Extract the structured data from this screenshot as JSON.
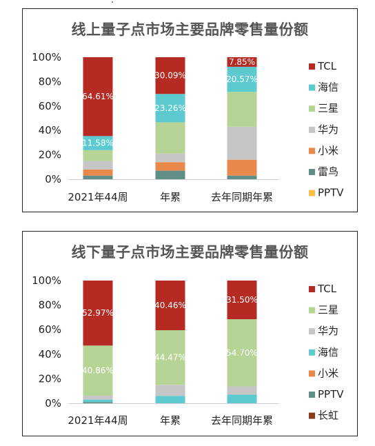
{
  "chart_data": [
    {
      "type": "bar",
      "stacked": true,
      "title": "线上量子点市场主要品牌零售量份额",
      "categories": [
        "2021年44周",
        "年累",
        "去年同期年累"
      ],
      "yticks": [
        "0%",
        "20%",
        "40%",
        "60%",
        "80%",
        "100%"
      ],
      "ylim": [
        0,
        100
      ],
      "grid": false,
      "legend_position": "right",
      "legend": [
        "TCL",
        "海信",
        "三星",
        "华为",
        "小米",
        "雷鸟",
        "PPTV"
      ],
      "series": [
        {
          "name": "雷鸟",
          "color": "#5f8f86",
          "values": [
            3,
            7,
            3
          ],
          "labels": [
            "",
            "",
            ""
          ]
        },
        {
          "name": "小米",
          "color": "#e8884a",
          "values": [
            5,
            7,
            13
          ],
          "labels": [
            "",
            "",
            ""
          ]
        },
        {
          "name": "华为",
          "color": "#c6c6c6",
          "values": [
            7,
            7,
            27
          ],
          "labels": [
            "",
            "",
            ""
          ]
        },
        {
          "name": "三星",
          "color": "#b6d495",
          "values": [
            8.81,
            25.65,
            28.58
          ],
          "labels": [
            "",
            "",
            ""
          ]
        },
        {
          "name": "海信",
          "color": "#5ccacf",
          "values": [
            11.58,
            23.26,
            20.57
          ],
          "labels": [
            "11.58%",
            "23.26%",
            "20.57%"
          ]
        },
        {
          "name": "TCL",
          "color": "#b52a22",
          "values": [
            64.61,
            30.09,
            7.85
          ],
          "labels": [
            "64.61%",
            "30.09%",
            "7.85%"
          ]
        },
        {
          "name": "PPTV",
          "color": "#f5c04a",
          "values": [
            0,
            0,
            0
          ],
          "labels": [
            "",
            "",
            ""
          ]
        }
      ]
    },
    {
      "type": "bar",
      "stacked": true,
      "title": "线下量子点市场主要品牌零售量份额",
      "categories": [
        "2021年44周",
        "年累",
        "去年同期年累"
      ],
      "yticks": [
        "0%",
        "20%",
        "40%",
        "60%",
        "80%",
        "100%"
      ],
      "ylim": [
        0,
        100
      ],
      "grid": false,
      "legend_position": "right",
      "legend": [
        "TCL",
        "三星",
        "华为",
        "海信",
        "小米",
        "PPTV",
        "长虹"
      ],
      "series": [
        {
          "name": "长虹",
          "color": "#8b3a1a",
          "values": [
            0,
            0,
            0
          ],
          "labels": [
            "",
            "",
            ""
          ]
        },
        {
          "name": "PPTV",
          "color": "#5f8f86",
          "values": [
            1,
            0,
            0
          ],
          "labels": [
            "",
            "",
            ""
          ]
        },
        {
          "name": "小米",
          "color": "#e8884a",
          "values": [
            0,
            0,
            0
          ],
          "labels": [
            "",
            "",
            ""
          ]
        },
        {
          "name": "海信",
          "color": "#5ccacf",
          "values": [
            2,
            6,
            7
          ],
          "labels": [
            "",
            "",
            ""
          ]
        },
        {
          "name": "华为",
          "color": "#c6c6c6",
          "values": [
            3.17,
            9.07,
            6.8
          ],
          "labels": [
            "",
            "",
            ""
          ]
        },
        {
          "name": "三星",
          "color": "#b6d495",
          "values": [
            40.86,
            44.47,
            54.7
          ],
          "labels": [
            "40.86%",
            "44.47%",
            "54.70%"
          ]
        },
        {
          "name": "TCL",
          "color": "#b52a22",
          "values": [
            52.97,
            40.46,
            31.5
          ],
          "labels": [
            "52.97%",
            "40.46%",
            "31.50%"
          ]
        }
      ]
    }
  ]
}
